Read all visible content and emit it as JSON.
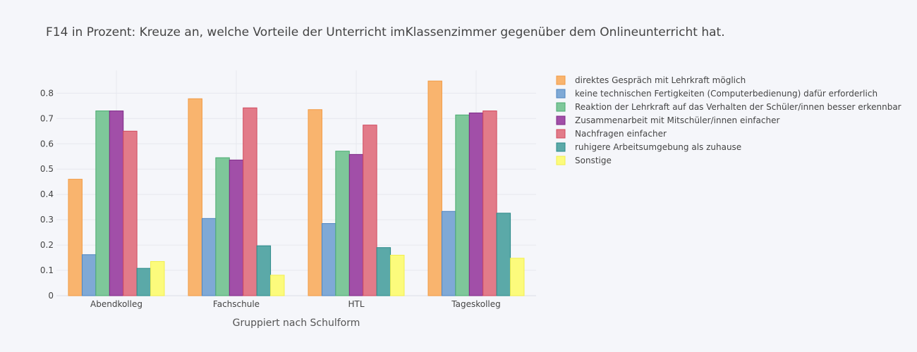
{
  "chart_data": {
    "type": "bar",
    "title": "F14 in Prozent: Kreuze an, welche Vorteile der Unterricht imKlassenzimmer gegenüber dem Onlineunterricht hat.",
    "xlabel": "Gruppiert nach Schulform",
    "ylabel": "",
    "ylim": [
      0,
      0.89
    ],
    "yticks": [
      0,
      0.1,
      0.2,
      0.3,
      0.4,
      0.5,
      0.6,
      0.7,
      0.8
    ],
    "grid": true,
    "legend_position": "right",
    "categories": [
      "Abendkolleg",
      "Fachschule",
      "HTL",
      "Tageskolleg"
    ],
    "series": [
      {
        "name": "direktes Gespräch mit Lehrkraft möglich",
        "color": "#f9b46e",
        "stroke": "#f19a43",
        "values": [
          0.46,
          0.778,
          0.735,
          0.848
        ]
      },
      {
        "name": "keine technischen Fertigkeiten (Computerbedienung) dafür erforderlich",
        "color": "#7fa9d6",
        "stroke": "#4f85c0",
        "values": [
          0.162,
          0.305,
          0.285,
          0.333
        ]
      },
      {
        "name": "Reaktion der Lehrkraft auf das Verhalten der Schüler/innen besser erkennbar",
        "color": "#7ec79a",
        "stroke": "#4aab70",
        "values": [
          0.73,
          0.545,
          0.571,
          0.714
        ]
      },
      {
        "name": "Zusammenarbeit mit Mitschüler/innen einfacher",
        "color": "#a14fa8",
        "stroke": "#7e2a87",
        "values": [
          0.73,
          0.536,
          0.558,
          0.722
        ]
      },
      {
        "name": "Nachfragen einfacher",
        "color": "#e27b89",
        "stroke": "#d14a5e",
        "values": [
          0.65,
          0.742,
          0.674,
          0.73
        ]
      },
      {
        "name": "ruhigere Arbeitsumgebung als zuhause",
        "color": "#5ba9a8",
        "stroke": "#2b8a89",
        "values": [
          0.108,
          0.197,
          0.19,
          0.326
        ]
      },
      {
        "name": "Sonstige",
        "color": "#fcfb7c",
        "stroke": "#f2ef4d",
        "values": [
          0.135,
          0.081,
          0.16,
          0.148
        ]
      }
    ]
  }
}
